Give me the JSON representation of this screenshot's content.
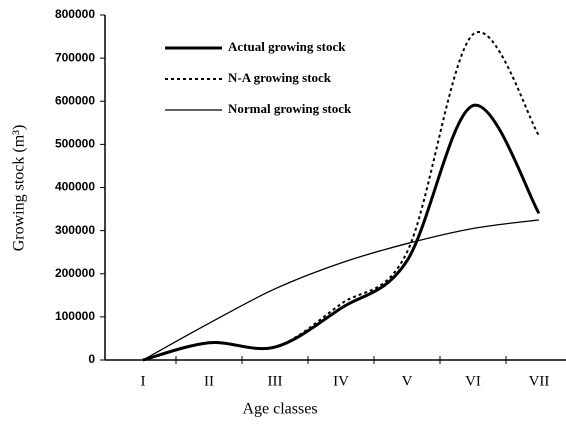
{
  "chart_data": {
    "type": "line",
    "xlabel": "Age classes",
    "ylabel": "Growing stock (m³)",
    "categories": [
      "I",
      "II",
      "III",
      "IV",
      "V",
      "VI",
      "VII"
    ],
    "series": [
      {
        "name": "Actual growing stock",
        "color": "#000000",
        "values": [
          0,
          40000,
          30000,
          120000,
          230000,
          590000,
          340000
        ]
      },
      {
        "name": "N-A growing stock",
        "color": "#000000",
        "values": [
          0,
          40000,
          30000,
          130000,
          250000,
          755000,
          520000
        ]
      },
      {
        "name": "Normal growing stock",
        "color": "#000000",
        "values": [
          0,
          85000,
          165000,
          225000,
          270000,
          305000,
          325000
        ]
      }
    ],
    "ylim": [
      0,
      800000
    ],
    "yticks": [
      0,
      100000,
      200000,
      300000,
      400000,
      500000,
      600000,
      700000,
      800000
    ],
    "legend": "upper left"
  }
}
